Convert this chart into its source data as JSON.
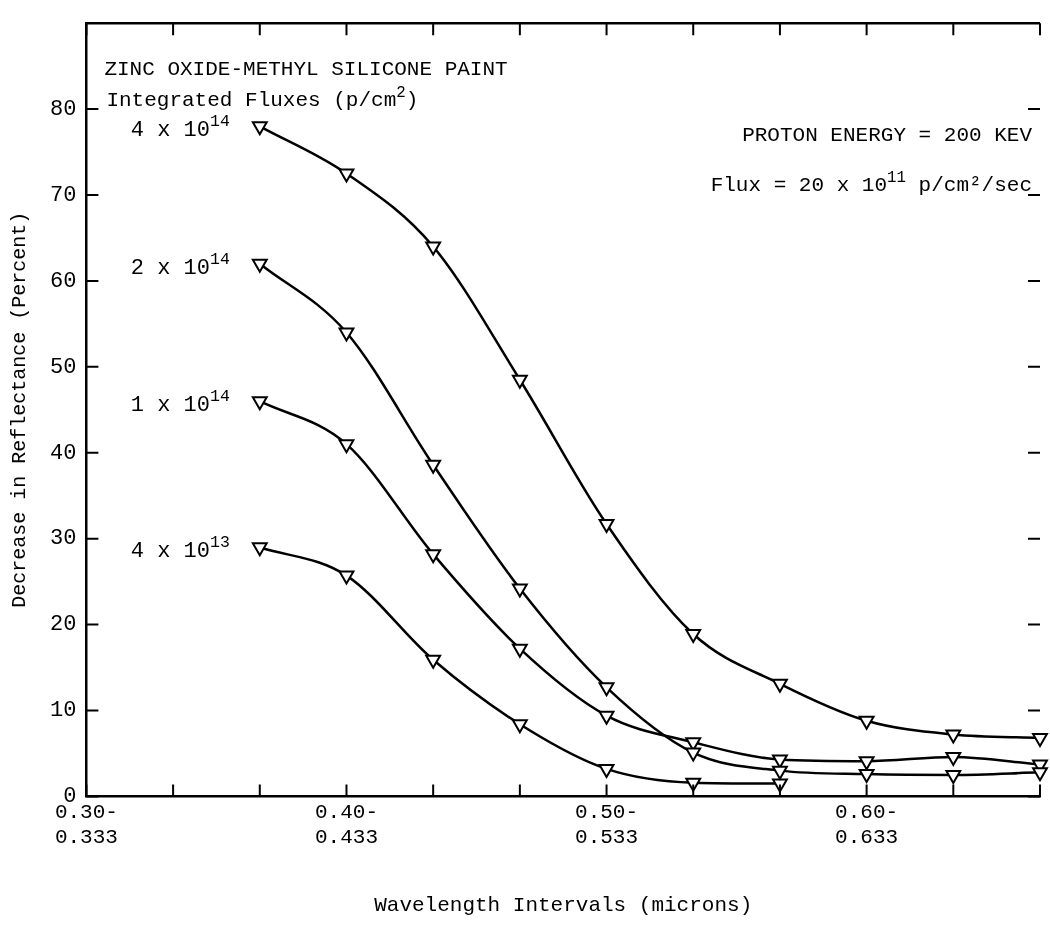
{
  "chart_data": {
    "type": "line",
    "title": "ZINC OXIDE-METHYL SILICONE PAINT",
    "subtitle": "Integrated Fluxes (p/cm$^{2}$)",
    "xlabel": "Wavelength Intervals (microns)",
    "ylabel": "Decrease in Reflectance (Percent)",
    "categories": [
      "0.30-0.333",
      null,
      null,
      "0.40-0.433",
      null,
      null,
      "0.50-0.533",
      null,
      null,
      "0.60-0.633",
      null,
      null
    ],
    "series": [
      {
        "name": "4 x 10$^{14}$",
        "color": "#000000",
        "values": [
          null,
          null,
          78,
          72.5,
          64,
          48.5,
          31.7,
          18.9,
          13.1,
          8.8,
          7.2,
          6.8
        ]
      },
      {
        "name": "2 x 10$^{14}$",
        "color": "#000000",
        "values": [
          null,
          null,
          62,
          54,
          38.6,
          24.2,
          12.7,
          5.1,
          3,
          2.6,
          2.5,
          2.8
        ]
      },
      {
        "name": "1 x 10$^{14}$",
        "color": "#000000",
        "values": [
          null,
          null,
          46,
          41,
          28.2,
          17.2,
          9.4,
          6.3,
          4.3,
          4.1,
          4.6,
          3.7
        ]
      },
      {
        "name": "4 x 10$^{13}$",
        "color": "#000000",
        "values": [
          null,
          null,
          29,
          25.7,
          15.9,
          8.4,
          3.2,
          1.6,
          1.5,
          null,
          null,
          null
        ]
      }
    ],
    "ylim": [
      0,
      90
    ],
    "yticks": [
      0,
      10,
      20,
      30,
      40,
      50,
      60,
      70,
      80
    ],
    "annotations": [
      "PROTON ENERGY = 200 KEV",
      "Flux = 20 x 10$^{11}$ p/cm²/sec"
    ],
    "marker": "triangle",
    "line_style": "solid",
    "grid": false,
    "legend": false
  }
}
